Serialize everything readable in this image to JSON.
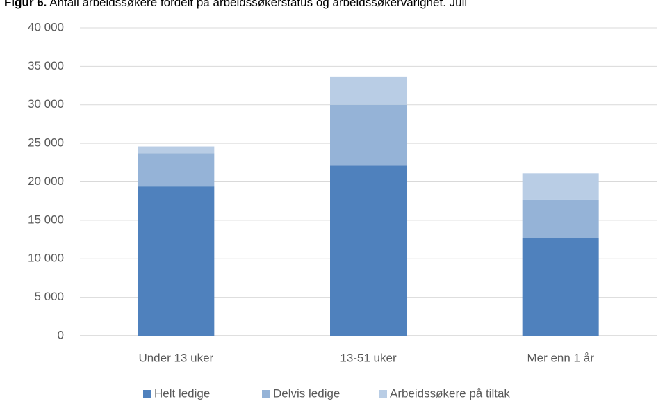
{
  "chart_data": {
    "type": "stacked-bar",
    "title_label": "Figur 6.",
    "title": "Antall arbeidssøkere fordelt på arbeidssøkerstatus og arbeidssøkervarighet. Juli",
    "categories": [
      "Under 13 uker",
      "13-51 uker",
      "Mer enn 1 år"
    ],
    "series": [
      {
        "name": "Helt ledige",
        "color": "#4f81bd",
        "values": [
          19400,
          22100,
          12700
        ]
      },
      {
        "name": "Delvis ledige",
        "color": "#95b3d7",
        "values": [
          4300,
          7900,
          5000
        ]
      },
      {
        "name": "Arbeidssøkere på tiltak",
        "color": "#b9cde5",
        "values": [
          900,
          3600,
          3400
        ]
      }
    ],
    "ylim": [
      0,
      40000
    ],
    "yticks": [
      0,
      {
        "value": 5000,
        "label": "5 000"
      },
      {
        "value": 10000,
        "label": "10 000"
      },
      {
        "value": 15000,
        "label": "15 000"
      },
      {
        "value": 20000,
        "label": "20 000"
      },
      {
        "value": 25000,
        "label": "25 000"
      },
      {
        "value": 30000,
        "label": "30 000"
      },
      {
        "value": 35000,
        "label": "35 000"
      },
      {
        "value": 40000,
        "label": "40 000"
      }
    ],
    "grid": true,
    "legend": "bottom"
  }
}
